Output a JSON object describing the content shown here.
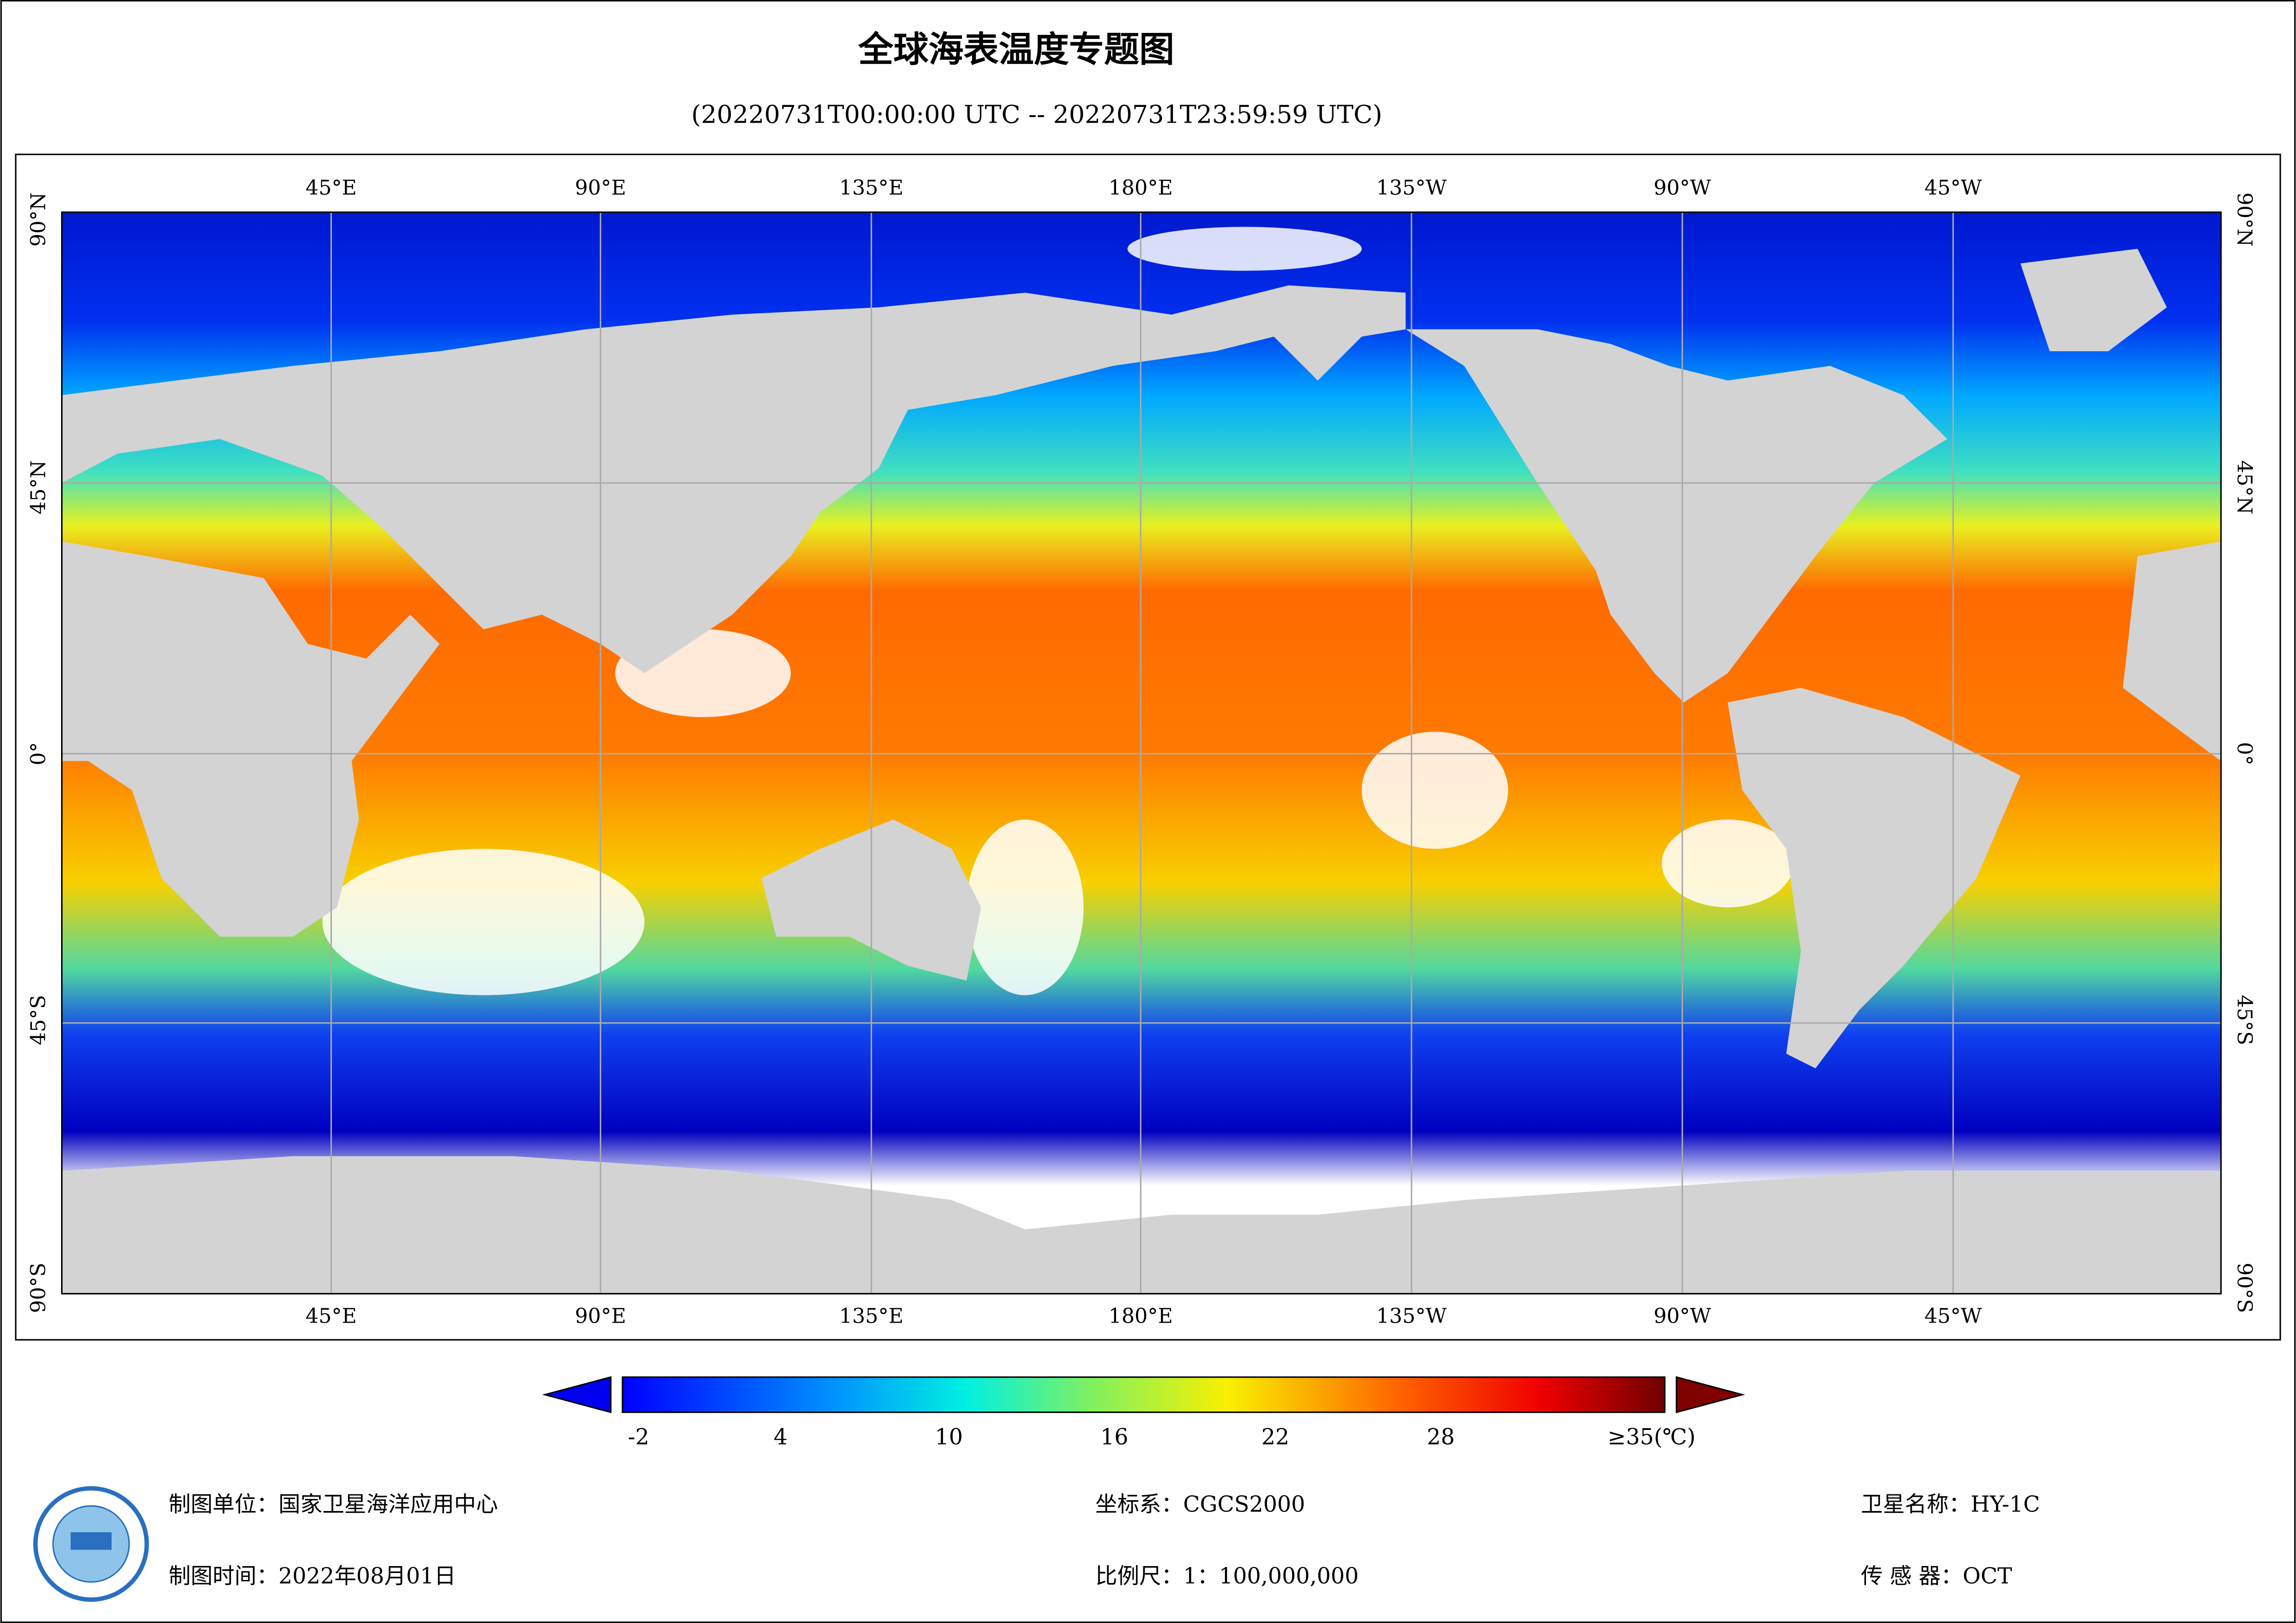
{
  "title": "全球海表温度专题图",
  "subtitle": "(20220731T00:00:00 UTC -- 20220731T23:59:59 UTC)",
  "map": {
    "lon_labels": [
      "45°E",
      "90°E",
      "135°E",
      "180°E",
      "135°W",
      "90°W",
      "45°W"
    ],
    "lat_labels": [
      "90°N",
      "45°N",
      "0°",
      "45°S",
      "90°S"
    ]
  },
  "colorbar": {
    "ticks": [
      "-2",
      "4",
      "10",
      "16",
      "22",
      "28",
      "≥35(℃)"
    ]
  },
  "footer": {
    "unit": "制图单位：国家卫星海洋应用中心",
    "time": "制图时间：2022年08月01日",
    "crs": "坐标系：CGCS2000",
    "scale": "比例尺：1：100,000,000",
    "satellite": "卫星名称：HY-1C",
    "sensor": "传 感 器：OCT"
  }
}
